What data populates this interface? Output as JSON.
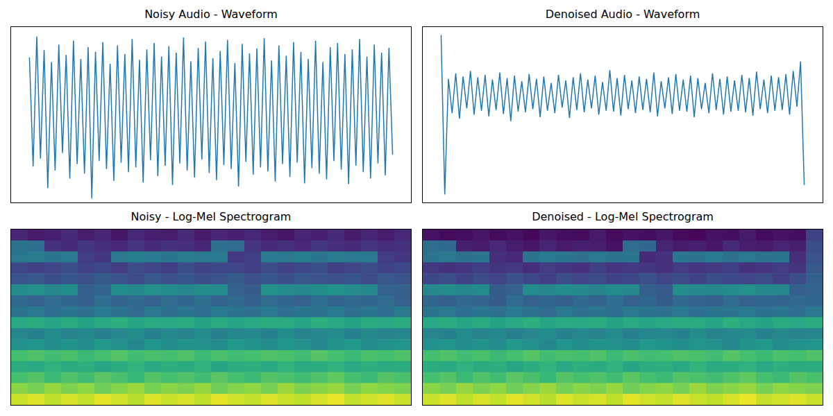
{
  "chart_data": [
    {
      "type": "line",
      "title": "Noisy Audio - Waveform",
      "color": "#1f77b4",
      "tick_labels": false,
      "xlim": [
        -5,
        104
      ],
      "ylim": [
        -1.1,
        1.1
      ],
      "values": [
        0.72,
        -0.65,
        0.98,
        -0.55,
        0.81,
        -0.92,
        0.66,
        -0.7,
        0.88,
        -0.48,
        0.75,
        -0.8,
        0.93,
        -0.62,
        0.7,
        -0.74,
        0.85,
        -1.05,
        0.79,
        -0.58,
        0.91,
        -0.68,
        0.64,
        -0.83,
        0.87,
        -0.6,
        0.76,
        -0.72,
        0.95,
        -0.66,
        0.69,
        -0.85,
        0.82,
        -0.57,
        0.9,
        -0.77,
        0.73,
        -0.64,
        0.86,
        -0.88,
        0.78,
        -0.61,
        0.97,
        -0.7,
        0.67,
        -0.79,
        0.84,
        -0.56,
        0.92,
        -0.73,
        0.71,
        -0.82,
        0.8,
        -0.63,
        0.94,
        -0.68,
        0.65,
        -0.9,
        0.89,
        -0.59,
        0.77,
        -0.75,
        0.83,
        -0.66,
        0.96,
        -0.71,
        0.68,
        -0.84,
        0.87,
        -0.62,
        0.74,
        -0.78,
        0.91,
        -0.6,
        0.79,
        -0.86,
        0.7,
        -0.67,
        0.93,
        -0.74,
        0.66,
        -0.81,
        0.85,
        -0.58,
        0.9,
        -0.69,
        0.76,
        -0.87,
        0.82,
        -0.64,
        0.95,
        -0.72,
        0.73,
        -0.8,
        0.88,
        -0.61,
        0.78,
        -0.76,
        0.84,
        -0.5
      ]
    },
    {
      "type": "line",
      "title": "Denoised Audio - Waveform",
      "color": "#1f77b4",
      "tick_labels": false,
      "xlim": [
        -5,
        104
      ],
      "ylim": [
        -1.1,
        1.1
      ],
      "values": [
        1.0,
        -1.0,
        0.45,
        0.02,
        0.52,
        -0.05,
        0.48,
        0.08,
        0.55,
        0.0,
        0.47,
        0.05,
        0.5,
        -0.02,
        0.44,
        0.06,
        0.53,
        0.01,
        0.46,
        -0.08,
        0.49,
        0.04,
        0.42,
        0.03,
        0.51,
        0.07,
        0.45,
        -0.03,
        0.48,
        0.05,
        0.4,
        0.02,
        0.5,
        0.09,
        0.43,
        -0.04,
        0.47,
        0.06,
        0.52,
        0.03,
        0.44,
        0.08,
        0.49,
        0.0,
        0.41,
        0.05,
        0.56,
        0.04,
        0.46,
        -0.01,
        0.5,
        0.07,
        0.43,
        0.02,
        0.48,
        0.06,
        0.45,
        0.03,
        0.53,
        -0.02,
        0.42,
        0.08,
        0.47,
        0.01,
        0.51,
        0.05,
        0.44,
        0.04,
        0.49,
        -0.03,
        0.46,
        0.07,
        0.4,
        0.02,
        0.52,
        0.06,
        0.45,
        0.0,
        0.48,
        0.04,
        0.43,
        0.05,
        0.5,
        0.03,
        0.46,
        -0.01,
        0.54,
        0.07,
        0.44,
        0.02,
        0.49,
        0.05,
        0.47,
        0.06,
        0.51,
        0.0,
        0.55,
        0.1,
        0.67,
        -0.88
      ]
    },
    {
      "type": "heatmap",
      "title": "Noisy - Log-Mel Spectrogram",
      "tick_labels": false,
      "clim": [
        0,
        1
      ],
      "cells": [
        [
          0.1,
          0.07,
          0.09,
          0.12,
          0.08,
          0.1,
          0.06,
          0.11,
          0.09,
          0.08,
          0.12,
          0.07,
          0.1,
          0.09,
          0.11,
          0.08,
          0.06,
          0.1,
          0.09,
          0.12,
          0.07,
          0.1,
          0.08,
          0.11
        ],
        [
          0.38,
          0.36,
          0.14,
          0.12,
          0.16,
          0.13,
          0.11,
          0.15,
          0.12,
          0.14,
          0.13,
          0.1,
          0.37,
          0.35,
          0.15,
          0.12,
          0.14,
          0.11,
          0.16,
          0.13,
          0.12,
          0.15,
          0.13,
          0.14
        ],
        [
          0.4,
          0.42,
          0.39,
          0.41,
          0.18,
          0.16,
          0.4,
          0.43,
          0.41,
          0.39,
          0.42,
          0.4,
          0.41,
          0.17,
          0.19,
          0.41,
          0.4,
          0.43,
          0.39,
          0.42,
          0.4,
          0.41,
          0.18,
          0.16
        ],
        [
          0.22,
          0.19,
          0.21,
          0.24,
          0.2,
          0.22,
          0.18,
          0.23,
          0.21,
          0.19,
          0.24,
          0.2,
          0.22,
          0.21,
          0.19,
          0.23,
          0.2,
          0.22,
          0.24,
          0.19,
          0.21,
          0.23,
          0.2,
          0.22
        ],
        [
          0.26,
          0.28,
          0.24,
          0.27,
          0.25,
          0.29,
          0.26,
          0.23,
          0.28,
          0.25,
          0.27,
          0.24,
          0.26,
          0.29,
          0.25,
          0.27,
          0.24,
          0.28,
          0.26,
          0.25,
          0.27,
          0.23,
          0.28,
          0.26
        ],
        [
          0.48,
          0.5,
          0.47,
          0.49,
          0.3,
          0.32,
          0.49,
          0.47,
          0.5,
          0.48,
          0.46,
          0.49,
          0.48,
          0.31,
          0.29,
          0.5,
          0.48,
          0.47,
          0.49,
          0.51,
          0.48,
          0.47,
          0.31,
          0.3
        ],
        [
          0.34,
          0.31,
          0.35,
          0.33,
          0.3,
          0.36,
          0.32,
          0.34,
          0.31,
          0.35,
          0.33,
          0.37,
          0.32,
          0.34,
          0.3,
          0.35,
          0.33,
          0.31,
          0.36,
          0.32,
          0.34,
          0.33,
          0.35,
          0.31
        ],
        [
          0.38,
          0.4,
          0.36,
          0.39,
          0.37,
          0.41,
          0.38,
          0.35,
          0.4,
          0.37,
          0.39,
          0.36,
          0.41,
          0.38,
          0.37,
          0.4,
          0.36,
          0.39,
          0.38,
          0.41,
          0.37,
          0.39,
          0.36,
          0.4
        ],
        [
          0.6,
          0.62,
          0.59,
          0.61,
          0.58,
          0.6,
          0.63,
          0.59,
          0.61,
          0.6,
          0.62,
          0.58,
          0.61,
          0.59,
          0.6,
          0.62,
          0.61,
          0.59,
          0.63,
          0.6,
          0.58,
          0.61,
          0.6,
          0.62
        ],
        [
          0.46,
          0.44,
          0.48,
          0.45,
          0.47,
          0.43,
          0.46,
          0.49,
          0.44,
          0.47,
          0.45,
          0.48,
          0.43,
          0.46,
          0.47,
          0.44,
          0.49,
          0.45,
          0.46,
          0.48,
          0.44,
          0.47,
          0.45,
          0.46
        ],
        [
          0.5,
          0.52,
          0.49,
          0.51,
          0.48,
          0.53,
          0.5,
          0.47,
          0.52,
          0.49,
          0.51,
          0.5,
          0.48,
          0.53,
          0.51,
          0.49,
          0.52,
          0.5,
          0.47,
          0.51,
          0.53,
          0.49,
          0.5,
          0.52
        ],
        [
          0.7,
          0.72,
          0.69,
          0.71,
          0.68,
          0.7,
          0.73,
          0.69,
          0.71,
          0.7,
          0.72,
          0.68,
          0.71,
          0.69,
          0.7,
          0.72,
          0.71,
          0.69,
          0.73,
          0.7,
          0.68,
          0.71,
          0.7,
          0.72
        ],
        [
          0.62,
          0.6,
          0.64,
          0.61,
          0.63,
          0.59,
          0.62,
          0.65,
          0.6,
          0.63,
          0.61,
          0.64,
          0.59,
          0.62,
          0.63,
          0.6,
          0.65,
          0.61,
          0.62,
          0.64,
          0.6,
          0.63,
          0.61,
          0.62
        ],
        [
          0.7,
          0.73,
          0.68,
          0.72,
          0.69,
          0.74,
          0.71,
          0.67,
          0.73,
          0.7,
          0.72,
          0.69,
          0.74,
          0.7,
          0.68,
          0.73,
          0.71,
          0.69,
          0.72,
          0.75,
          0.7,
          0.68,
          0.73,
          0.71
        ],
        [
          0.82,
          0.79,
          0.84,
          0.8,
          0.83,
          0.78,
          0.81,
          0.85,
          0.79,
          0.82,
          0.8,
          0.84,
          0.78,
          0.81,
          0.83,
          0.79,
          0.85,
          0.8,
          0.82,
          0.84,
          0.79,
          0.83,
          0.81,
          0.8
        ],
        [
          0.92,
          0.95,
          0.9,
          0.94,
          0.91,
          0.96,
          0.93,
          0.89,
          0.95,
          0.92,
          0.94,
          0.9,
          0.96,
          0.93,
          0.91,
          0.95,
          0.92,
          0.9,
          0.94,
          0.97,
          0.91,
          0.93,
          0.95,
          0.92
        ]
      ]
    },
    {
      "type": "heatmap",
      "title": "Denoised - Log-Mel Spectrogram",
      "tick_labels": false,
      "clim": [
        0,
        1
      ],
      "cells": [
        [
          0.05,
          0.03,
          0.04,
          0.06,
          0.03,
          0.05,
          0.02,
          0.06,
          0.04,
          0.03,
          0.07,
          0.03,
          0.05,
          0.04,
          0.06,
          0.03,
          0.02,
          0.05,
          0.04,
          0.07,
          0.03,
          0.05,
          0.04,
          0.2
        ],
        [
          0.36,
          0.34,
          0.09,
          0.07,
          0.11,
          0.08,
          0.06,
          0.1,
          0.07,
          0.09,
          0.08,
          0.05,
          0.35,
          0.33,
          0.1,
          0.07,
          0.09,
          0.06,
          0.11,
          0.08,
          0.07,
          0.1,
          0.08,
          0.24
        ],
        [
          0.38,
          0.4,
          0.37,
          0.39,
          0.13,
          0.11,
          0.38,
          0.41,
          0.39,
          0.37,
          0.4,
          0.38,
          0.39,
          0.12,
          0.14,
          0.39,
          0.38,
          0.41,
          0.37,
          0.4,
          0.38,
          0.39,
          0.13,
          0.26
        ],
        [
          0.17,
          0.14,
          0.16,
          0.19,
          0.15,
          0.17,
          0.13,
          0.18,
          0.16,
          0.14,
          0.19,
          0.15,
          0.17,
          0.16,
          0.14,
          0.18,
          0.15,
          0.17,
          0.19,
          0.14,
          0.16,
          0.18,
          0.15,
          0.28
        ],
        [
          0.22,
          0.24,
          0.2,
          0.23,
          0.21,
          0.25,
          0.22,
          0.19,
          0.24,
          0.21,
          0.23,
          0.2,
          0.22,
          0.25,
          0.21,
          0.23,
          0.2,
          0.24,
          0.22,
          0.21,
          0.23,
          0.19,
          0.24,
          0.3
        ],
        [
          0.47,
          0.49,
          0.46,
          0.48,
          0.29,
          0.31,
          0.48,
          0.46,
          0.49,
          0.47,
          0.45,
          0.48,
          0.47,
          0.3,
          0.28,
          0.49,
          0.47,
          0.46,
          0.48,
          0.5,
          0.47,
          0.46,
          0.3,
          0.32
        ],
        [
          0.33,
          0.3,
          0.34,
          0.32,
          0.29,
          0.35,
          0.31,
          0.33,
          0.3,
          0.34,
          0.32,
          0.36,
          0.31,
          0.33,
          0.29,
          0.34,
          0.32,
          0.3,
          0.35,
          0.31,
          0.33,
          0.32,
          0.34,
          0.33
        ],
        [
          0.38,
          0.4,
          0.36,
          0.39,
          0.37,
          0.41,
          0.38,
          0.35,
          0.4,
          0.37,
          0.39,
          0.36,
          0.41,
          0.38,
          0.37,
          0.4,
          0.36,
          0.39,
          0.38,
          0.41,
          0.37,
          0.39,
          0.36,
          0.4
        ],
        [
          0.6,
          0.62,
          0.59,
          0.61,
          0.58,
          0.6,
          0.63,
          0.59,
          0.61,
          0.6,
          0.62,
          0.58,
          0.61,
          0.59,
          0.6,
          0.62,
          0.61,
          0.59,
          0.63,
          0.6,
          0.58,
          0.61,
          0.6,
          0.62
        ],
        [
          0.46,
          0.44,
          0.48,
          0.45,
          0.47,
          0.43,
          0.46,
          0.49,
          0.44,
          0.47,
          0.45,
          0.48,
          0.43,
          0.46,
          0.47,
          0.44,
          0.49,
          0.45,
          0.46,
          0.48,
          0.44,
          0.47,
          0.45,
          0.46
        ],
        [
          0.5,
          0.52,
          0.49,
          0.51,
          0.48,
          0.53,
          0.5,
          0.47,
          0.52,
          0.49,
          0.51,
          0.5,
          0.48,
          0.53,
          0.51,
          0.49,
          0.52,
          0.5,
          0.47,
          0.51,
          0.53,
          0.49,
          0.5,
          0.52
        ],
        [
          0.7,
          0.72,
          0.69,
          0.71,
          0.68,
          0.7,
          0.73,
          0.69,
          0.71,
          0.7,
          0.72,
          0.68,
          0.71,
          0.69,
          0.7,
          0.72,
          0.71,
          0.69,
          0.73,
          0.7,
          0.68,
          0.71,
          0.7,
          0.72
        ],
        [
          0.62,
          0.6,
          0.64,
          0.61,
          0.63,
          0.59,
          0.62,
          0.65,
          0.6,
          0.63,
          0.61,
          0.64,
          0.59,
          0.62,
          0.63,
          0.6,
          0.65,
          0.61,
          0.62,
          0.64,
          0.6,
          0.63,
          0.61,
          0.62
        ],
        [
          0.7,
          0.73,
          0.68,
          0.72,
          0.69,
          0.74,
          0.71,
          0.67,
          0.73,
          0.7,
          0.72,
          0.69,
          0.74,
          0.7,
          0.68,
          0.73,
          0.71,
          0.69,
          0.72,
          0.75,
          0.7,
          0.68,
          0.73,
          0.71
        ],
        [
          0.82,
          0.79,
          0.84,
          0.8,
          0.83,
          0.78,
          0.81,
          0.85,
          0.79,
          0.82,
          0.8,
          0.84,
          0.78,
          0.81,
          0.83,
          0.79,
          0.85,
          0.8,
          0.82,
          0.84,
          0.79,
          0.83,
          0.81,
          0.8
        ],
        [
          0.92,
          0.95,
          0.9,
          0.94,
          0.91,
          0.96,
          0.93,
          0.89,
          0.95,
          0.92,
          0.94,
          0.9,
          0.96,
          0.93,
          0.91,
          0.95,
          0.92,
          0.9,
          0.94,
          0.97,
          0.91,
          0.93,
          0.95,
          0.92
        ]
      ]
    }
  ]
}
